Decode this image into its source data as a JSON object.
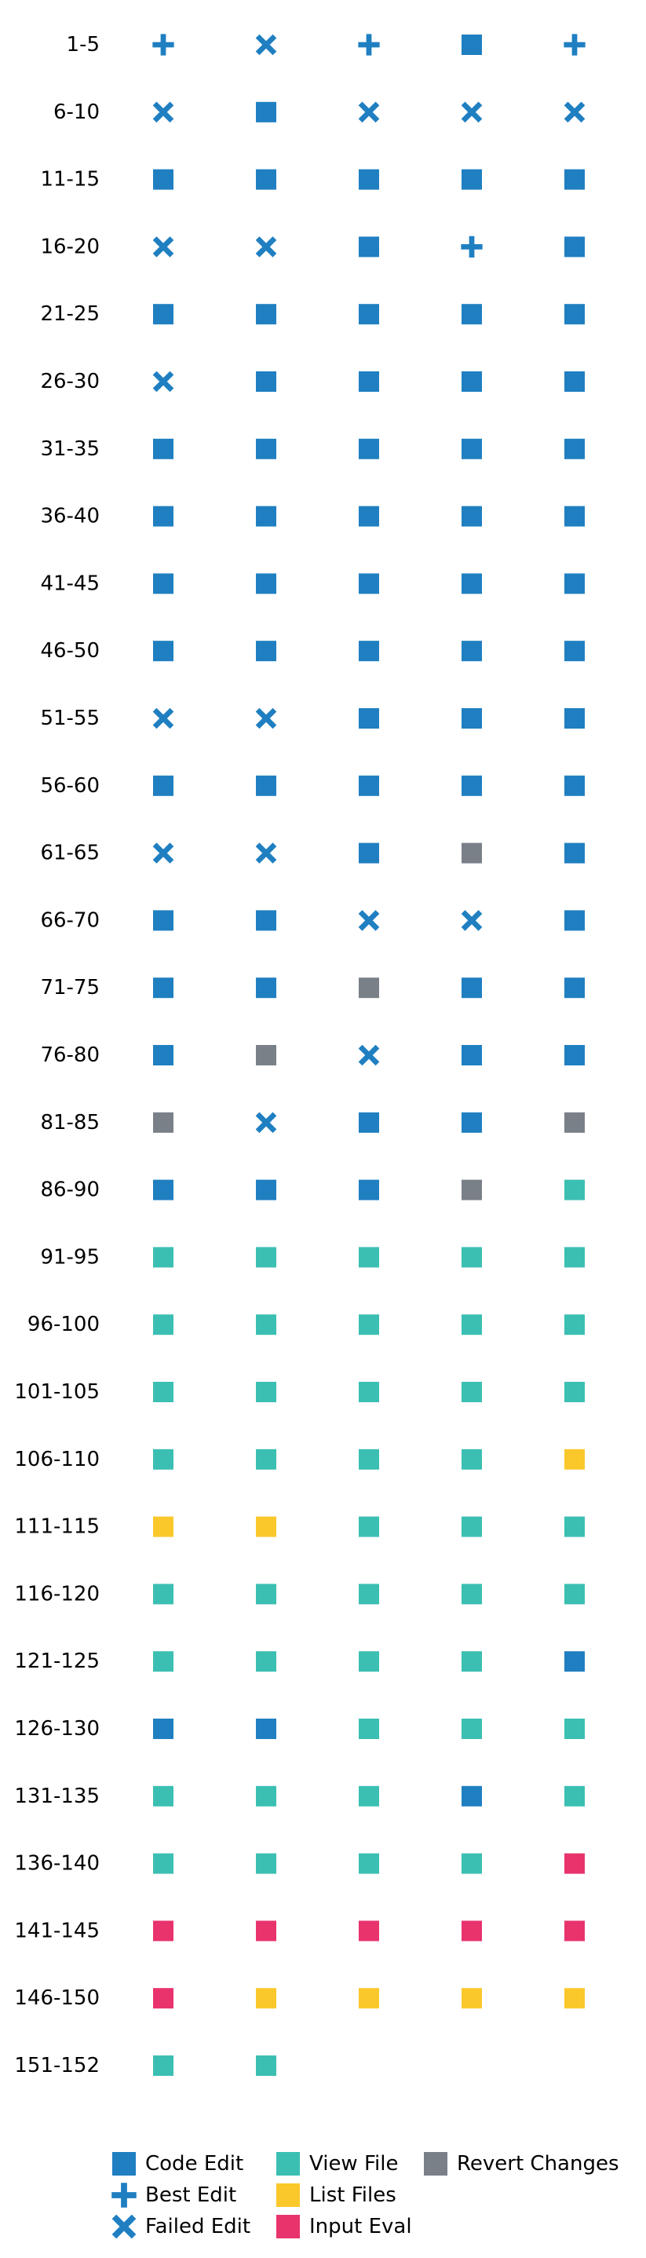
{
  "chart_data": {
    "type": "scatter",
    "title": "",
    "xlabel": "",
    "ylabel": "",
    "columns": 5,
    "rows": [
      {
        "label": "1-5",
        "steps": [
          "best",
          "failed",
          "best",
          "code",
          "best"
        ]
      },
      {
        "label": "6-10",
        "steps": [
          "failed",
          "code",
          "failed",
          "failed",
          "failed"
        ]
      },
      {
        "label": "11-15",
        "steps": [
          "code",
          "code",
          "code",
          "code",
          "code"
        ]
      },
      {
        "label": "16-20",
        "steps": [
          "failed",
          "failed",
          "code",
          "best",
          "code"
        ]
      },
      {
        "label": "21-25",
        "steps": [
          "code",
          "code",
          "code",
          "code",
          "code"
        ]
      },
      {
        "label": "26-30",
        "steps": [
          "failed",
          "code",
          "code",
          "code",
          "code"
        ]
      },
      {
        "label": "31-35",
        "steps": [
          "code",
          "code",
          "code",
          "code",
          "code"
        ]
      },
      {
        "label": "36-40",
        "steps": [
          "code",
          "code",
          "code",
          "code",
          "code"
        ]
      },
      {
        "label": "41-45",
        "steps": [
          "code",
          "code",
          "code",
          "code",
          "code"
        ]
      },
      {
        "label": "46-50",
        "steps": [
          "code",
          "code",
          "code",
          "code",
          "code"
        ]
      },
      {
        "label": "51-55",
        "steps": [
          "failed",
          "failed",
          "code",
          "code",
          "code"
        ]
      },
      {
        "label": "56-60",
        "steps": [
          "code",
          "code",
          "code",
          "code",
          "code"
        ]
      },
      {
        "label": "61-65",
        "steps": [
          "failed",
          "failed",
          "code",
          "revert",
          "code"
        ]
      },
      {
        "label": "66-70",
        "steps": [
          "code",
          "code",
          "failed",
          "failed",
          "code"
        ]
      },
      {
        "label": "71-75",
        "steps": [
          "code",
          "code",
          "revert",
          "code",
          "code"
        ]
      },
      {
        "label": "76-80",
        "steps": [
          "code",
          "revert",
          "failed",
          "code",
          "code"
        ]
      },
      {
        "label": "81-85",
        "steps": [
          "revert",
          "failed",
          "code",
          "code",
          "revert"
        ]
      },
      {
        "label": "86-90",
        "steps": [
          "code",
          "code",
          "code",
          "revert",
          "view"
        ]
      },
      {
        "label": "91-95",
        "steps": [
          "view",
          "view",
          "view",
          "view",
          "view"
        ]
      },
      {
        "label": "96-100",
        "steps": [
          "view",
          "view",
          "view",
          "view",
          "view"
        ]
      },
      {
        "label": "101-105",
        "steps": [
          "view",
          "view",
          "view",
          "view",
          "view"
        ]
      },
      {
        "label": "106-110",
        "steps": [
          "view",
          "view",
          "view",
          "view",
          "list"
        ]
      },
      {
        "label": "111-115",
        "steps": [
          "list",
          "list",
          "view",
          "view",
          "view"
        ]
      },
      {
        "label": "116-120",
        "steps": [
          "view",
          "view",
          "view",
          "view",
          "view"
        ]
      },
      {
        "label": "121-125",
        "steps": [
          "view",
          "view",
          "view",
          "view",
          "code"
        ]
      },
      {
        "label": "126-130",
        "steps": [
          "code",
          "code",
          "view",
          "view",
          "view"
        ]
      },
      {
        "label": "131-135",
        "steps": [
          "view",
          "view",
          "view",
          "code",
          "view"
        ]
      },
      {
        "label": "136-140",
        "steps": [
          "view",
          "view",
          "view",
          "view",
          "input"
        ]
      },
      {
        "label": "141-145",
        "steps": [
          "input",
          "input",
          "input",
          "input",
          "input"
        ]
      },
      {
        "label": "146-150",
        "steps": [
          "input",
          "list",
          "list",
          "list",
          "list"
        ]
      },
      {
        "label": "151-152",
        "steps": [
          "view",
          "view"
        ]
      }
    ],
    "legend": {
      "placement": "bottom",
      "entries": [
        {
          "key": "code",
          "label": "Code Edit",
          "shape": "square",
          "color": "#1f7fc1"
        },
        {
          "key": "best",
          "label": "Best Edit",
          "shape": "plus",
          "color": "#1f7fc1"
        },
        {
          "key": "failed",
          "label": "Failed Edit",
          "shape": "x",
          "color": "#1f7fc1"
        },
        {
          "key": "view",
          "label": "View File",
          "shape": "square",
          "color": "#3bbfb2"
        },
        {
          "key": "list",
          "label": "List Files",
          "shape": "square",
          "color": "#fbc82b"
        },
        {
          "key": "input",
          "label": "Input Eval",
          "shape": "square",
          "color": "#e8336d"
        },
        {
          "key": "revert",
          "label": "Revert Changes",
          "shape": "square",
          "color": "#7a8088"
        }
      ]
    },
    "grid": false
  }
}
